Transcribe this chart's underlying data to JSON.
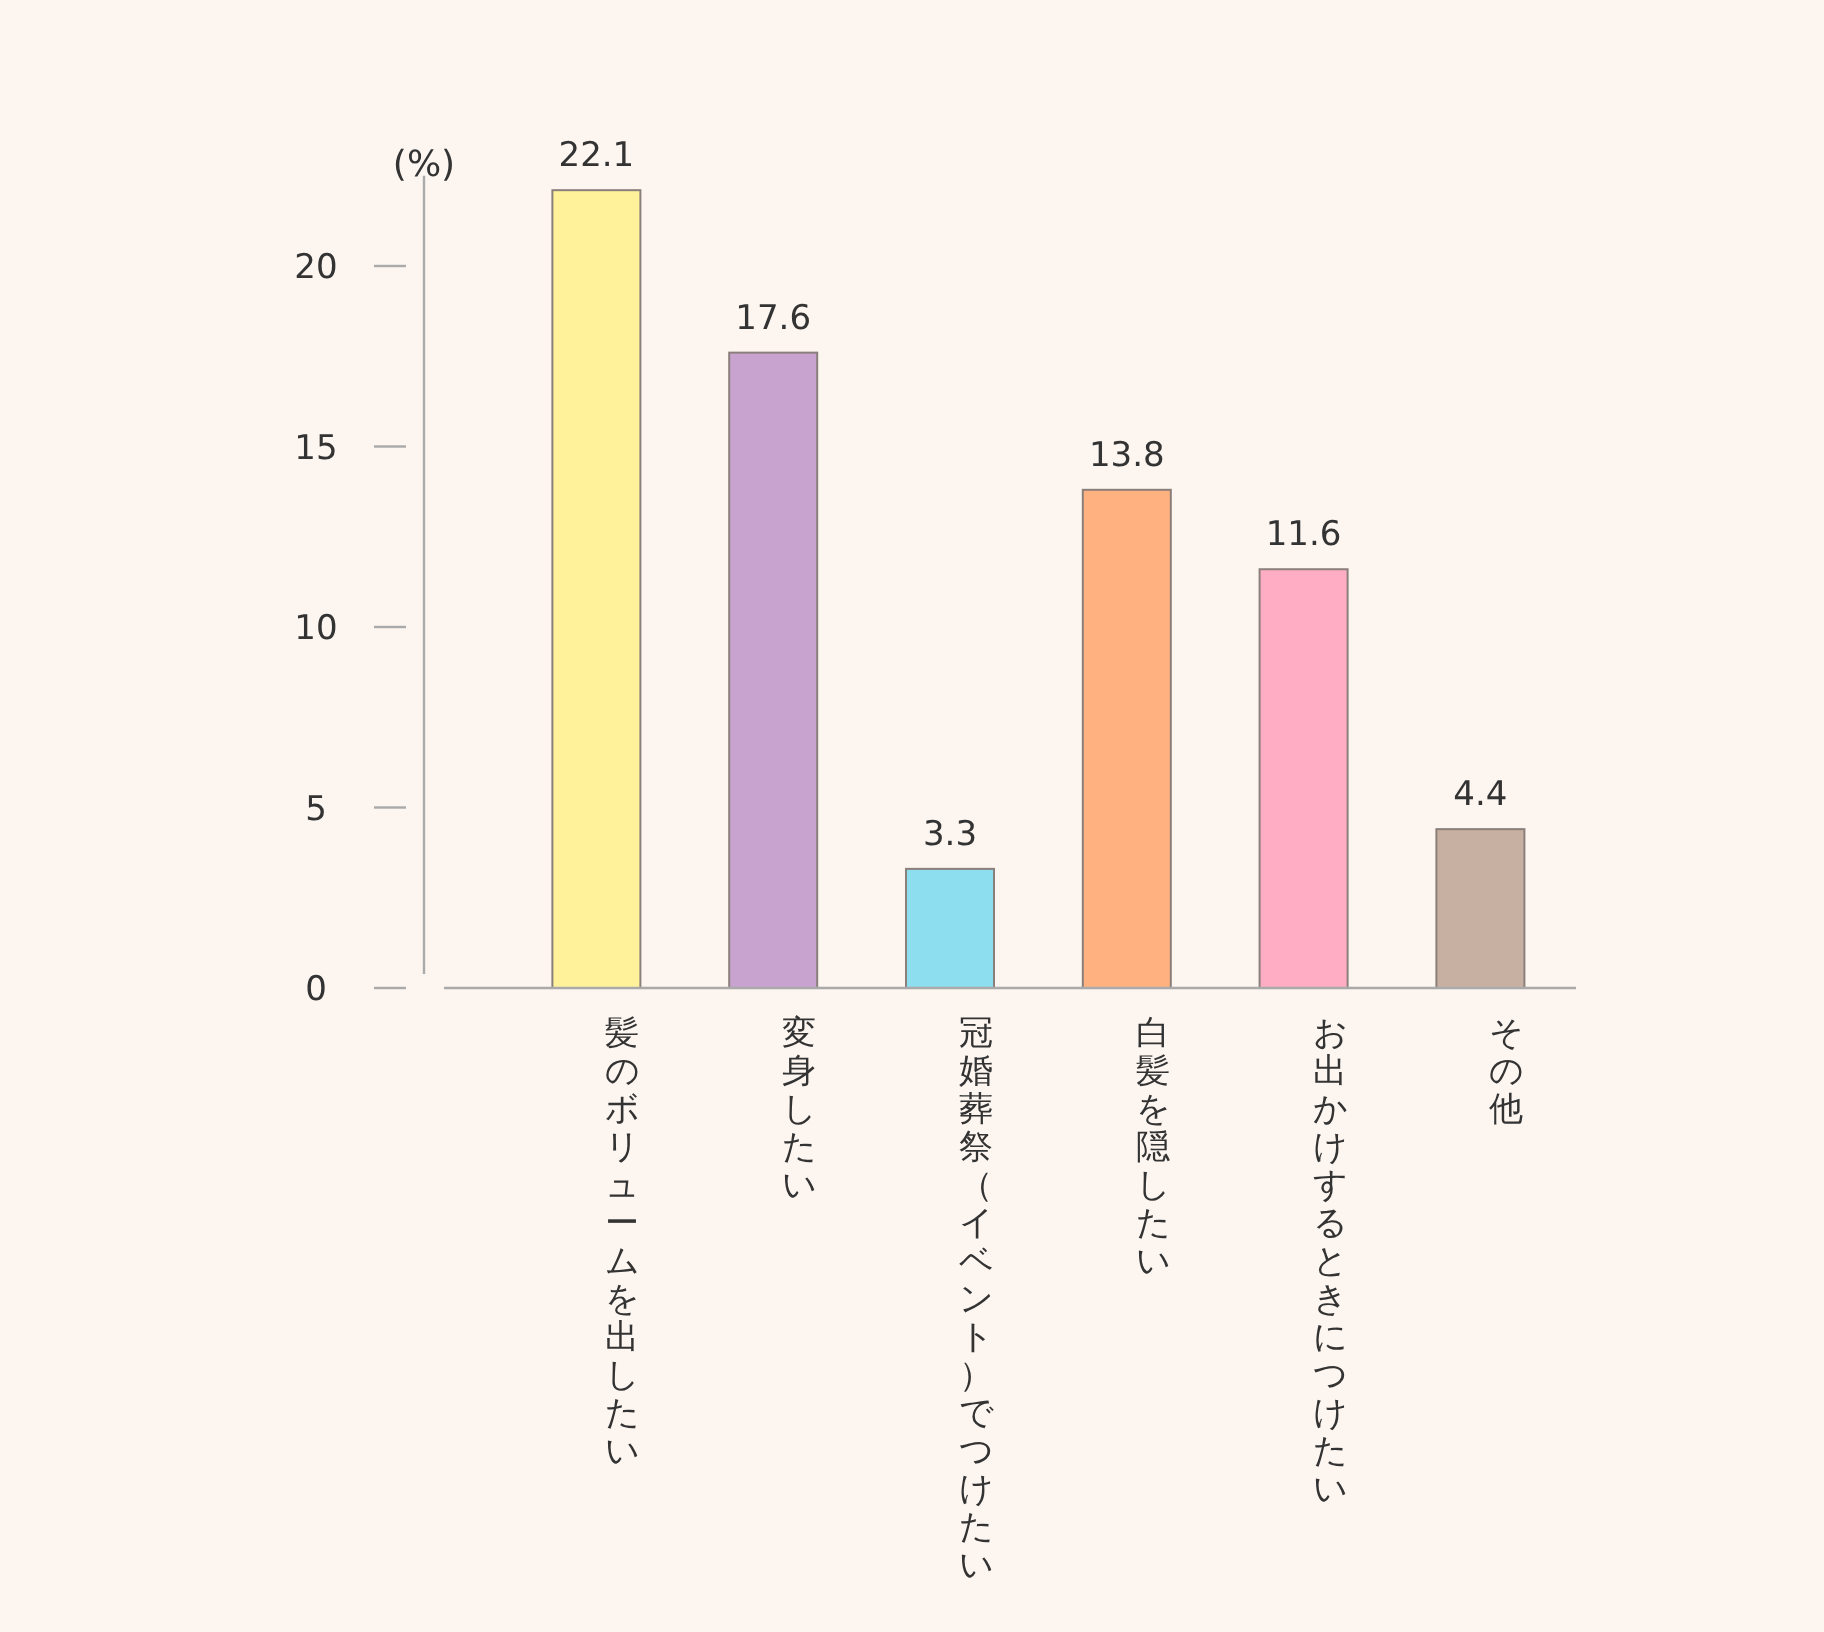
{
  "chart_data": {
    "type": "bar",
    "ylabel": "(%)",
    "categories": [
      "髪のボリュームを出したい",
      "変身したい",
      "冠婚葬祭（イベント）でつけたい",
      "白髪を隠したい",
      "お出かけするときにつけたい",
      "その他"
    ],
    "values": [
      22.1,
      17.6,
      3.3,
      13.8,
      11.6,
      4.4
    ],
    "colors": [
      "#fff29b",
      "#c9a3d0",
      "#8ddff0",
      "#ffb27f",
      "#ffadc4",
      "#c7b0a1"
    ],
    "ylim": [
      0,
      22.5
    ],
    "yticks": [
      0,
      5,
      10,
      15,
      20
    ],
    "data_labels": true
  }
}
